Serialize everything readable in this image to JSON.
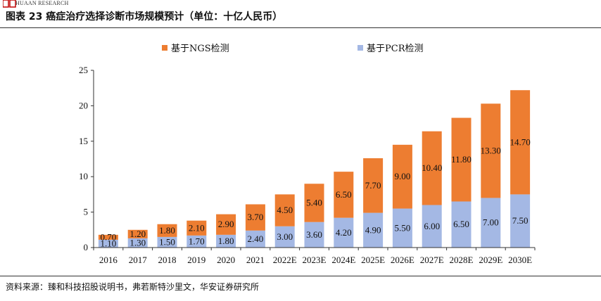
{
  "header": {
    "brand": "HUAAN RESEARCH",
    "title": "图表 23 癌症治疗选择诊断市场规模预计（单位：十亿人民币）"
  },
  "footer": {
    "source": "资料来源：臻和科技招股说明书，弗若斯特沙里文，华安证券研究所"
  },
  "colors": {
    "ngs": "#ED7D31",
    "pcr": "#A4B8E4",
    "brand": "#C00000"
  },
  "chart_data": {
    "type": "bar",
    "stacked": true,
    "title": "",
    "xlabel": "",
    "ylabel": "",
    "ylim": [
      0,
      25
    ],
    "yticks": [
      0,
      5,
      10,
      15,
      20,
      25
    ],
    "legend_position": "top-center",
    "categories": [
      "2016",
      "2017",
      "2018",
      "2019",
      "2020",
      "2021",
      "2022E",
      "2023E",
      "2024E",
      "2025E",
      "2026E",
      "2027E",
      "2028E",
      "2029E",
      "2030E"
    ],
    "series": [
      {
        "name": "基于PCR检测",
        "values": [
          1.1,
          1.3,
          1.5,
          1.7,
          1.8,
          2.4,
          3.0,
          3.6,
          4.2,
          4.9,
          5.5,
          6.0,
          6.5,
          7.0,
          7.5
        ]
      },
      {
        "name": "基于NGS检测",
        "values": [
          0.7,
          1.2,
          1.8,
          2.1,
          2.9,
          3.7,
          4.5,
          5.4,
          6.5,
          7.7,
          9.0,
          10.4,
          11.8,
          13.3,
          14.7
        ]
      }
    ]
  }
}
